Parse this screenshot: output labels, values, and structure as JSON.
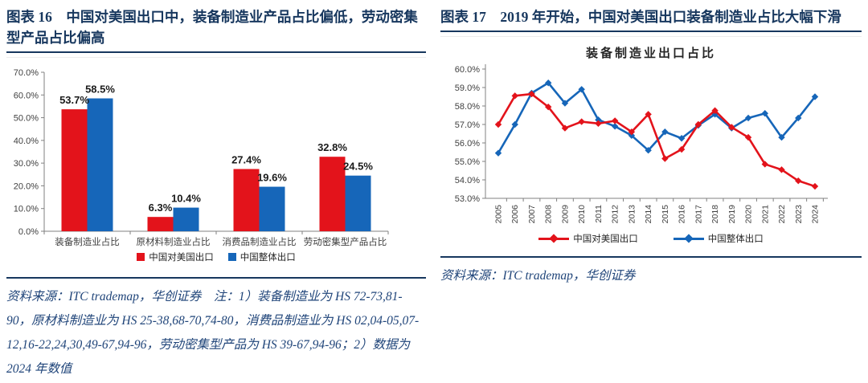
{
  "colors": {
    "red": "#e3131b",
    "blue": "#1666b9",
    "navy": "#17375e",
    "source_text": "#1f4479",
    "axis_text": "#404040",
    "axis_line": "#808080",
    "value_label_text": "#1a1a1a"
  },
  "figure16": {
    "title": "图表 16　中国对美国出口中，装备制造业产品占比偏低，劳动密集型产品占比偏高",
    "source": "资料来源：ITC trademap，华创证券　注：1）装备制造业为 HS 72-73,81-90，原材料制造业为 HS 25-38,68-70,74-80，消费品制造业为 HS 02,04-05,07-12,16-22,24,30,49-67,94-96，劳动密集型产品为 HS 39-67,94-96；2）数据为 2024 年数值"
  },
  "figure17": {
    "title": "图表 17　2019 年开始，中国对美国出口装备制造业占比大幅下滑",
    "source": "资料来源：ITC trademap，华创证券"
  },
  "chart_data": [
    {
      "type": "bar",
      "title": "",
      "categories": [
        "装备制造业占比",
        "原材料制造业占比",
        "消费品制造业占比",
        "劳动密集型产品占比"
      ],
      "series": [
        {
          "name": "中国对美国出口",
          "color_key": "red",
          "values": [
            53.7,
            6.3,
            27.4,
            32.8
          ]
        },
        {
          "name": "中国整体出口",
          "color_key": "blue",
          "values": [
            58.5,
            10.4,
            19.6,
            24.5
          ]
        }
      ],
      "ylabel": "",
      "ylim": [
        0,
        70
      ],
      "ytick_step": 10,
      "ytick_format": "percent_1dp",
      "data_labels": true,
      "grid": false,
      "legend_position": "bottom"
    },
    {
      "type": "line",
      "title": "装备制造业出口占比",
      "x": [
        "2005",
        "2006",
        "2007",
        "2008",
        "2009",
        "2010",
        "2011",
        "2012",
        "2013",
        "2014",
        "2015",
        "2016",
        "2017",
        "2018",
        "2019",
        "2020",
        "2021",
        "2022",
        "2023",
        "2024"
      ],
      "series": [
        {
          "name": "中国对美国出口",
          "color_key": "red",
          "marker": "diamond",
          "values": [
            57.0,
            58.55,
            58.65,
            57.95,
            56.8,
            57.15,
            57.05,
            57.2,
            56.6,
            57.55,
            55.15,
            55.65,
            57.0,
            57.75,
            56.85,
            56.3,
            54.85,
            54.55,
            53.95,
            53.65
          ]
        },
        {
          "name": "中国整体出口",
          "color_key": "blue",
          "marker": "diamond",
          "values": [
            55.45,
            57.0,
            58.7,
            59.25,
            58.15,
            58.9,
            57.25,
            56.9,
            56.4,
            55.6,
            56.6,
            56.25,
            56.95,
            57.55,
            56.8,
            57.35,
            57.6,
            56.3,
            57.35,
            58.5
          ]
        }
      ],
      "ylim": [
        53,
        60
      ],
      "ytick_step": 1,
      "ytick_format": "percent_1dp",
      "grid": false,
      "legend_position": "bottom"
    }
  ]
}
